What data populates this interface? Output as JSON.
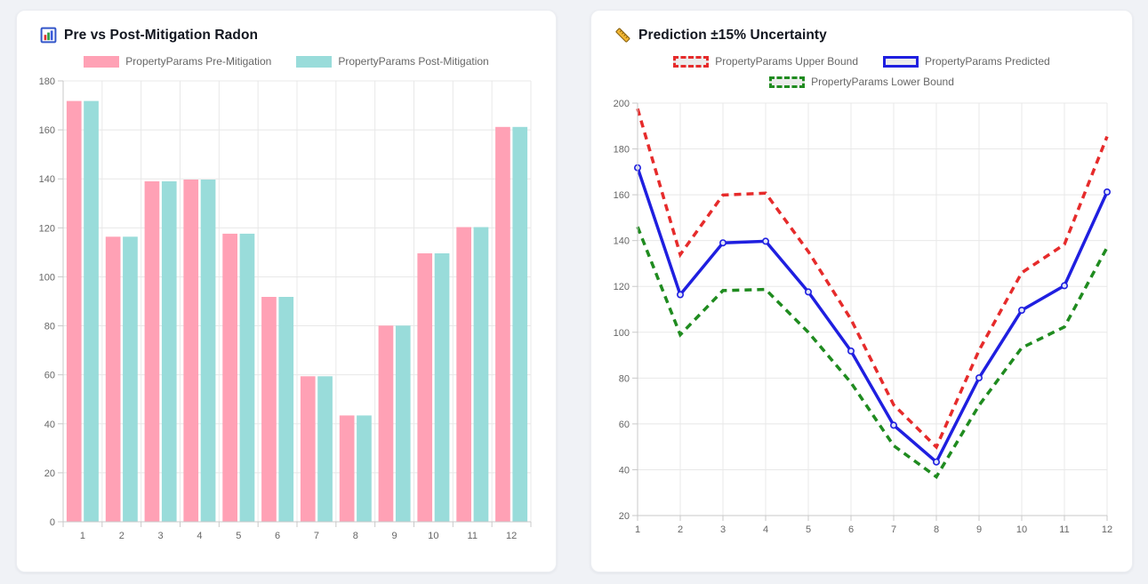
{
  "page": {
    "background_color": "#f0f2f6",
    "card_background_color": "#ffffff",
    "title_color": "#12161f",
    "tick_label_color": "#666666",
    "legend_text_color": "#666666",
    "grid_color": "#e8e8e8",
    "axis_color": "#c9c9c9"
  },
  "chart_data": [
    {
      "type": "bar",
      "title": "Pre vs Post-Mitigation Radon",
      "title_icon": "bar-chart-icon",
      "categories": [
        "1",
        "2",
        "3",
        "4",
        "5",
        "6",
        "7",
        "8",
        "9",
        "10",
        "11",
        "12"
      ],
      "series": [
        {
          "name": "PropertyParams Pre-Mitigation",
          "color": "#ffa1b5",
          "values": [
            171.8,
            116.4,
            139.0,
            139.7,
            117.6,
            91.8,
            59.4,
            43.4,
            80.1,
            109.6,
            120.3,
            161.2
          ]
        },
        {
          "name": "PropertyParams Post-Mitigation",
          "color": "#99dcda",
          "values": [
            171.8,
            116.4,
            139.0,
            139.7,
            117.6,
            91.8,
            59.4,
            43.4,
            80.1,
            109.6,
            120.3,
            161.2
          ]
        }
      ],
      "xlabel": "",
      "ylabel": "",
      "ylim": [
        0,
        180
      ],
      "ytick_step": 20,
      "grid": true,
      "legend_position": "top"
    },
    {
      "type": "line",
      "title": "Prediction ±15% Uncertainty",
      "title_icon": "ruler-icon",
      "x": [
        "1",
        "2",
        "3",
        "4",
        "5",
        "6",
        "7",
        "8",
        "9",
        "10",
        "11",
        "12"
      ],
      "series": [
        {
          "name": "PropertyParams Upper Bound",
          "color": "#e62b2b",
          "dash": true,
          "points": false,
          "values": [
            197.6,
            133.9,
            159.9,
            160.7,
            135.2,
            105.6,
            68.3,
            49.9,
            92.1,
            126.0,
            138.3,
            185.4
          ]
        },
        {
          "name": "PropertyParams Predicted",
          "color": "#1f1fe0",
          "dash": false,
          "points": true,
          "values": [
            171.8,
            116.4,
            139.0,
            139.7,
            117.6,
            91.8,
            59.4,
            43.4,
            80.1,
            109.6,
            120.3,
            161.2
          ]
        },
        {
          "name": "PropertyParams Lower Bound",
          "color": "#1f8b1f",
          "dash": true,
          "points": false,
          "values": [
            146.0,
            98.9,
            118.2,
            118.7,
            100.0,
            78.0,
            50.5,
            36.9,
            68.1,
            93.2,
            102.3,
            137.0
          ]
        }
      ],
      "xlabel": "",
      "ylabel": "",
      "ylim": [
        20,
        200
      ],
      "ytick_step": 20,
      "grid": true,
      "legend_position": "top"
    }
  ]
}
